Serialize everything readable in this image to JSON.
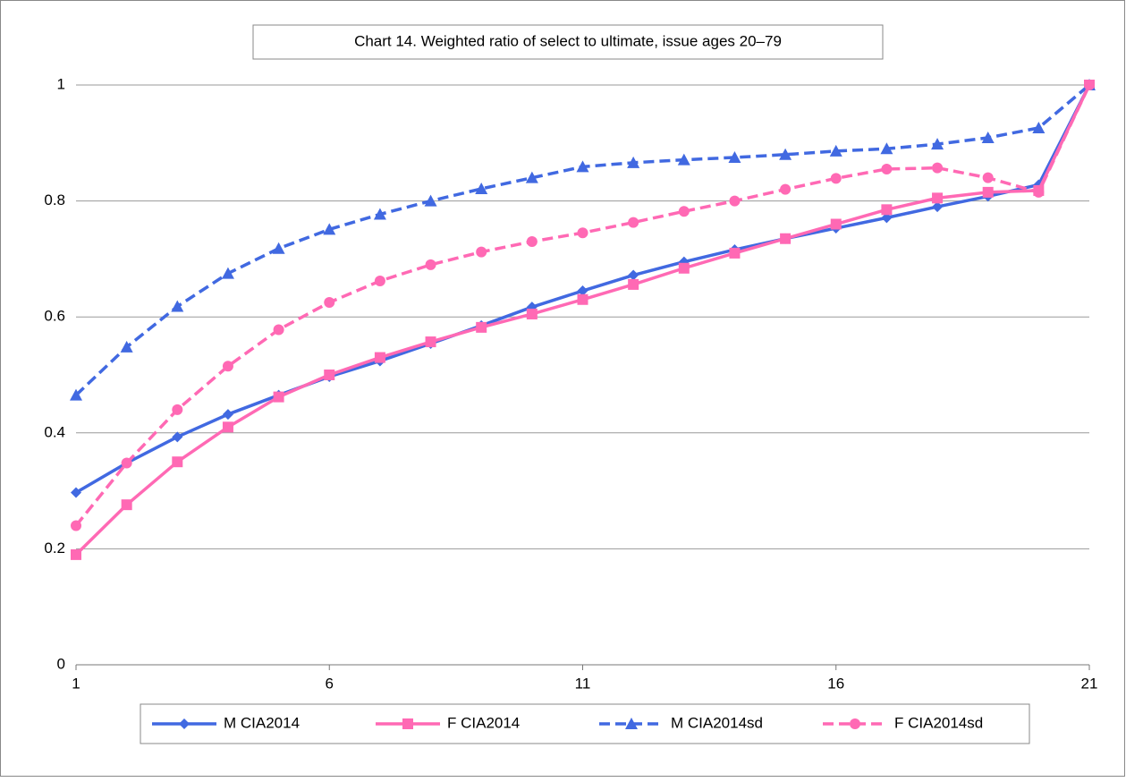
{
  "chart_data": {
    "type": "line",
    "title": "Chart 14. Weighted ratio of select to ultimate, issue ages 20–79",
    "x": [
      1,
      2,
      3,
      4,
      5,
      6,
      7,
      8,
      9,
      10,
      11,
      12,
      13,
      14,
      15,
      16,
      17,
      18,
      19,
      20,
      21
    ],
    "series": [
      {
        "name": "M CIA2014",
        "color": "#4169e1",
        "dashed": false,
        "marker": "diamond",
        "values": [
          0.297,
          0.348,
          0.393,
          0.432,
          0.465,
          0.497,
          0.524,
          0.554,
          0.585,
          0.617,
          0.645,
          0.672,
          0.695,
          0.716,
          0.735,
          0.753,
          0.771,
          0.79,
          0.808,
          0.828,
          1
        ]
      },
      {
        "name": "F CIA2014",
        "color": "#ff69b4",
        "dashed": false,
        "marker": "square",
        "values": [
          0.19,
          0.276,
          0.35,
          0.41,
          0.462,
          0.5,
          0.53,
          0.557,
          0.582,
          0.605,
          0.63,
          0.656,
          0.684,
          0.71,
          0.735,
          0.76,
          0.785,
          0.805,
          0.815,
          0.818,
          1
        ]
      },
      {
        "name": "M CIA2014sd",
        "color": "#4169e1",
        "dashed": true,
        "marker": "triangle",
        "values": [
          0.465,
          0.548,
          0.618,
          0.675,
          0.718,
          0.751,
          0.777,
          0.8,
          0.821,
          0.84,
          0.859,
          0.866,
          0.871,
          0.875,
          0.88,
          0.886,
          0.89,
          0.898,
          0.909,
          0.926,
          1
        ]
      },
      {
        "name": "F CIA2014sd",
        "color": "#ff69b4",
        "dashed": true,
        "marker": "circle",
        "values": [
          0.24,
          0.348,
          0.44,
          0.515,
          0.578,
          0.625,
          0.662,
          0.69,
          0.712,
          0.73,
          0.745,
          0.763,
          0.782,
          0.8,
          0.82,
          0.839,
          0.855,
          0.857,
          0.84,
          0.815,
          1
        ]
      }
    ],
    "xlim": [
      1,
      21
    ],
    "xticks": [
      1,
      6,
      11,
      16,
      21
    ],
    "ylim": [
      0,
      1
    ],
    "yticks": [
      0,
      0.2,
      0.4,
      0.6,
      0.8,
      1
    ],
    "grid": true,
    "legend": "bottom"
  }
}
